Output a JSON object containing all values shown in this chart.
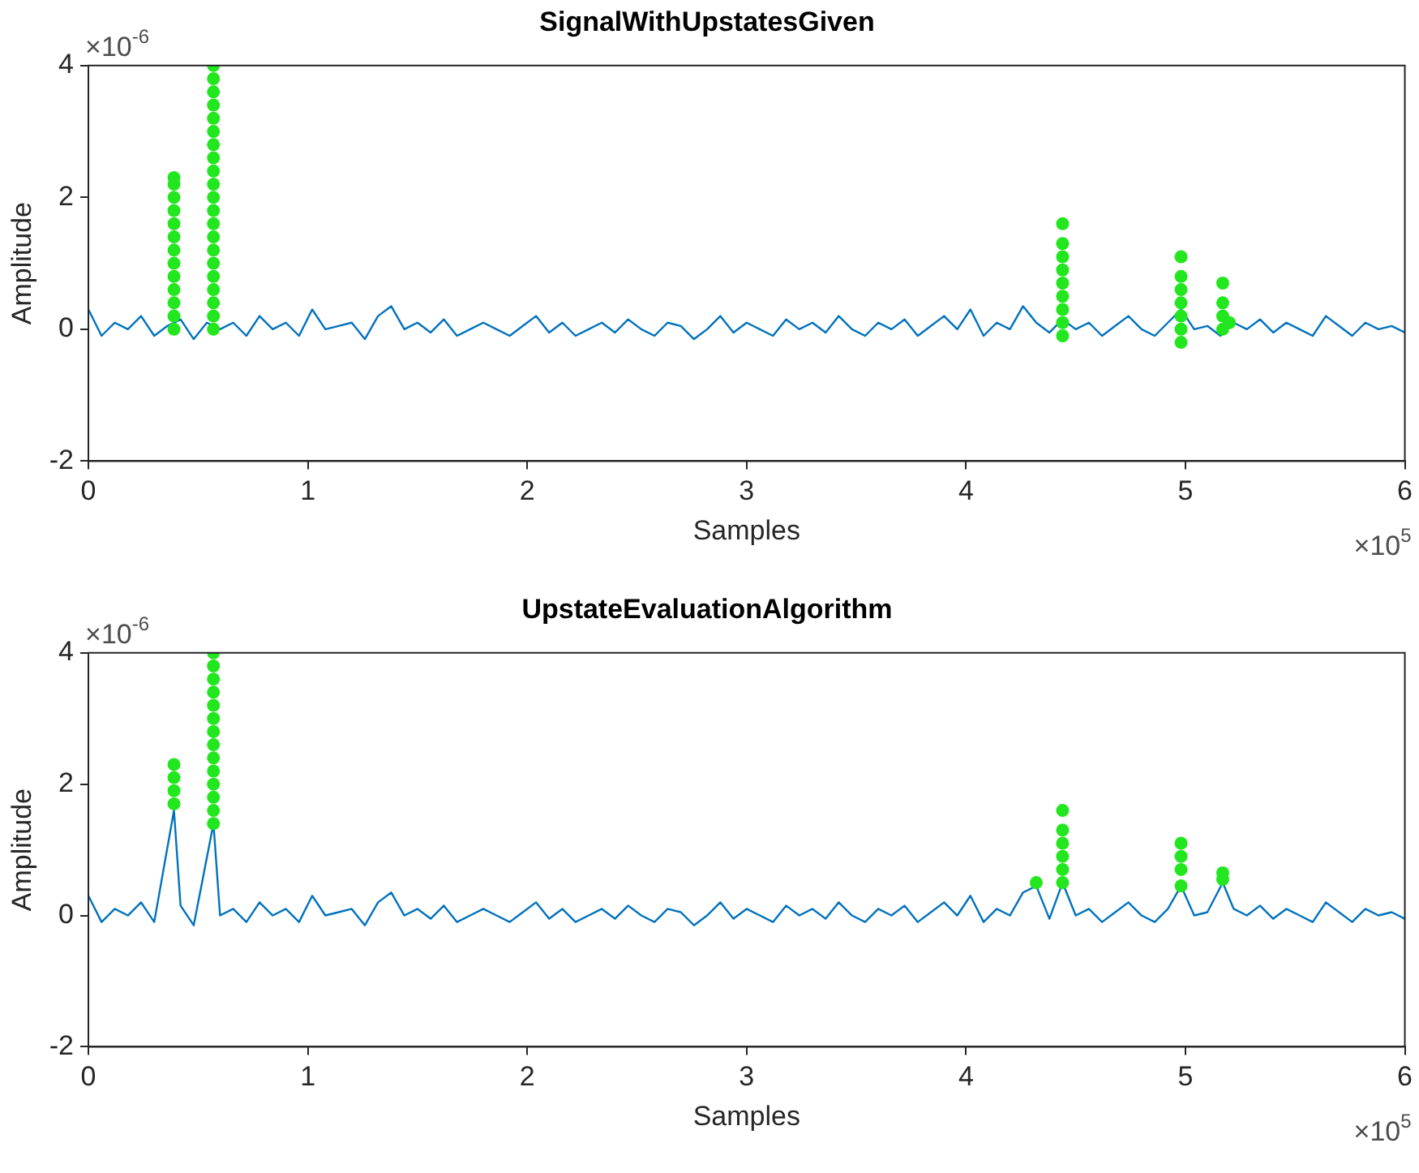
{
  "chart_data": [
    {
      "type": "line",
      "title": "SignalWithUpstatesGiven",
      "xlabel": "Samples",
      "ylabel": "Amplitude",
      "xlim": [
        0,
        6
      ],
      "ylim": [
        -2,
        4
      ],
      "xticks": [
        0,
        1,
        2,
        3,
        4,
        5,
        6
      ],
      "yticks": [
        -2,
        0,
        2,
        4
      ],
      "annotations": [
        "×10$^{-6}$",
        "×10$^{5}$"
      ],
      "series": [
        {
          "color": "#0072bd",
          "line_style": "solid",
          "x": [
            0,
            0.06,
            0.12,
            0.18,
            0.24,
            0.3,
            0.36,
            0.42,
            0.48,
            0.54,
            0.6,
            0.66,
            0.72,
            0.78,
            0.84,
            0.9,
            0.96,
            1.02,
            1.08,
            1.14,
            1.2,
            1.26,
            1.32,
            1.38,
            1.44,
            1.5,
            1.56,
            1.62,
            1.68,
            1.74,
            1.8,
            1.86,
            1.92,
            1.98,
            2.04,
            2.1,
            2.16,
            2.22,
            2.28,
            2.34,
            2.4,
            2.46,
            2.52,
            2.58,
            2.64,
            2.7,
            2.76,
            2.82,
            2.88,
            2.94,
            3,
            3.06,
            3.12,
            3.18,
            3.24,
            3.3,
            3.36,
            3.42,
            3.48,
            3.54,
            3.6,
            3.66,
            3.72,
            3.78,
            3.84,
            3.9,
            3.96,
            4.02,
            4.08,
            4.14,
            4.2,
            4.26,
            4.32,
            4.38,
            4.44,
            4.5,
            4.56,
            4.62,
            4.68,
            4.74,
            4.8,
            4.86,
            4.92,
            4.98,
            5.04,
            5.1,
            5.16,
            5.22,
            5.28,
            5.34,
            5.4,
            5.46,
            5.52,
            5.58,
            5.64,
            5.7,
            5.76,
            5.82,
            5.88,
            5.94,
            6
          ],
          "values": [
            0.3,
            -0.1,
            0.1,
            0,
            0.2,
            -0.1,
            0.05,
            0.15,
            -0.15,
            0.1,
            0,
            0.1,
            -0.1,
            0.2,
            0,
            0.1,
            -0.1,
            0.3,
            0,
            0.05,
            0.1,
            -0.15,
            0.2,
            0.35,
            0,
            0.1,
            -0.05,
            0.15,
            -0.1,
            0,
            0.1,
            0,
            -0.1,
            0.05,
            0.2,
            -0.05,
            0.1,
            -0.1,
            0,
            0.1,
            -0.05,
            0.15,
            0,
            -0.1,
            0.1,
            0.05,
            -0.15,
            0,
            0.2,
            -0.05,
            0.1,
            0,
            -0.1,
            0.15,
            0,
            0.1,
            -0.05,
            0.2,
            0,
            -0.1,
            0.1,
            0,
            0.15,
            -0.1,
            0.05,
            0.2,
            0,
            0.3,
            -0.1,
            0.1,
            0,
            0.35,
            0.1,
            -0.05,
            0.15,
            0,
            0.1,
            -0.1,
            0.05,
            0.2,
            0,
            -0.1,
            0.1,
            0.3,
            0,
            0.05,
            -0.1,
            0.1,
            0,
            0.15,
            -0.05,
            0.1,
            0,
            -0.1,
            0.2,
            0.05,
            -0.1,
            0.1,
            0,
            0.05,
            -0.05
          ]
        },
        {
          "type": "scatter",
          "color": "#22e61e",
          "marker": "circle",
          "x": [
            0.39,
            0.39,
            0.39,
            0.39,
            0.39,
            0.39,
            0.39,
            0.39,
            0.39,
            0.39,
            0.39,
            0.39,
            0.39,
            0.57,
            0.57,
            0.57,
            0.57,
            0.57,
            0.57,
            0.57,
            0.57,
            0.57,
            0.57,
            0.57,
            0.57,
            0.57,
            0.57,
            0.57,
            0.57,
            0.57,
            0.57,
            0.57,
            0.57,
            0.57,
            4.44,
            4.44,
            4.44,
            4.44,
            4.44,
            4.44,
            4.44,
            4.44,
            4.44,
            4.98,
            4.98,
            4.98,
            4.98,
            4.98,
            4.98,
            4.98,
            5.17,
            5.17,
            5.17,
            5.17,
            5.2
          ],
          "values": [
            0,
            0.2,
            0.4,
            0.6,
            0.8,
            1,
            1.2,
            1.4,
            1.6,
            1.8,
            2,
            2.2,
            2.3,
            0,
            0.2,
            0.4,
            0.6,
            0.8,
            1,
            1.2,
            1.4,
            1.6,
            1.8,
            2,
            2.2,
            2.4,
            2.6,
            2.8,
            3,
            3.2,
            3.4,
            3.6,
            3.8,
            4,
            -0.1,
            0.1,
            0.3,
            0.5,
            0.7,
            0.9,
            1.1,
            1.3,
            1.6,
            -0.2,
            0,
            0.2,
            0.4,
            0.6,
            0.8,
            1.1,
            0,
            0.2,
            0.4,
            0.7,
            0.1
          ]
        }
      ]
    },
    {
      "type": "line",
      "title": "UpstateEvaluationAlgorithm",
      "xlabel": "Samples",
      "ylabel": "Amplitude",
      "xlim": [
        0,
        6
      ],
      "ylim": [
        -2,
        4
      ],
      "xticks": [
        0,
        1,
        2,
        3,
        4,
        5,
        6
      ],
      "yticks": [
        -2,
        0,
        2,
        4
      ],
      "annotations": [
        "×10$^{-6}$",
        "×10$^{5}$"
      ],
      "series": [
        {
          "color": "#0072bd",
          "line_style": "solid",
          "x": [
            0,
            0.06,
            0.12,
            0.18,
            0.24,
            0.3,
            0.39,
            0.42,
            0.48,
            0.57,
            0.6,
            0.66,
            0.72,
            0.78,
            0.84,
            0.9,
            0.96,
            1.02,
            1.08,
            1.14,
            1.2,
            1.26,
            1.32,
            1.38,
            1.44,
            1.5,
            1.56,
            1.62,
            1.68,
            1.74,
            1.8,
            1.86,
            1.92,
            1.98,
            2.04,
            2.1,
            2.16,
            2.22,
            2.28,
            2.34,
            2.4,
            2.46,
            2.52,
            2.58,
            2.64,
            2.7,
            2.76,
            2.82,
            2.88,
            2.94,
            3,
            3.06,
            3.12,
            3.18,
            3.24,
            3.3,
            3.36,
            3.42,
            3.48,
            3.54,
            3.6,
            3.66,
            3.72,
            3.78,
            3.84,
            3.9,
            3.96,
            4.02,
            4.08,
            4.14,
            4.2,
            4.26,
            4.32,
            4.38,
            4.44,
            4.5,
            4.56,
            4.62,
            4.68,
            4.74,
            4.8,
            4.86,
            4.92,
            4.98,
            5.04,
            5.1,
            5.17,
            5.22,
            5.28,
            5.34,
            5.4,
            5.46,
            5.52,
            5.58,
            5.64,
            5.7,
            5.76,
            5.82,
            5.88,
            5.94,
            6
          ],
          "values": [
            0.3,
            -0.1,
            0.1,
            0,
            0.2,
            -0.1,
            1.6,
            0.15,
            -0.15,
            1.4,
            0,
            0.1,
            -0.1,
            0.2,
            0,
            0.1,
            -0.1,
            0.3,
            0,
            0.05,
            0.1,
            -0.15,
            0.2,
            0.35,
            0,
            0.1,
            -0.05,
            0.15,
            -0.1,
            0,
            0.1,
            0,
            -0.1,
            0.05,
            0.2,
            -0.05,
            0.1,
            -0.1,
            0,
            0.1,
            -0.05,
            0.15,
            0,
            -0.1,
            0.1,
            0.05,
            -0.15,
            0,
            0.2,
            -0.05,
            0.1,
            0,
            -0.1,
            0.15,
            0,
            0.1,
            -0.05,
            0.2,
            0,
            -0.1,
            0.1,
            0,
            0.15,
            -0.1,
            0.05,
            0.2,
            0,
            0.3,
            -0.1,
            0.1,
            0,
            0.35,
            0.45,
            -0.05,
            0.5,
            0,
            0.1,
            -0.1,
            0.05,
            0.2,
            0,
            -0.1,
            0.1,
            0.45,
            0,
            0.05,
            0.5,
            0.1,
            0,
            0.15,
            -0.05,
            0.1,
            0,
            -0.1,
            0.2,
            0.05,
            -0.1,
            0.1,
            0,
            0.05,
            -0.05
          ]
        },
        {
          "type": "scatter",
          "color": "#22e61e",
          "marker": "circle",
          "x": [
            0.39,
            0.39,
            0.39,
            0.39,
            0.57,
            0.57,
            0.57,
            0.57,
            0.57,
            0.57,
            0.57,
            0.57,
            0.57,
            0.57,
            0.57,
            0.57,
            0.57,
            0.57,
            4.32,
            4.44,
            4.44,
            4.44,
            4.44,
            4.44,
            4.44,
            4.98,
            4.98,
            4.98,
            4.98,
            5.17,
            5.17
          ],
          "values": [
            1.7,
            1.9,
            2.1,
            2.3,
            1.4,
            1.6,
            1.8,
            2,
            2.2,
            2.4,
            2.6,
            2.8,
            3,
            3.2,
            3.4,
            3.6,
            3.8,
            4,
            0.5,
            0.5,
            0.7,
            0.9,
            1.1,
            1.3,
            1.6,
            0.45,
            0.7,
            0.9,
            1.1,
            0.55,
            0.65
          ]
        }
      ]
    }
  ]
}
